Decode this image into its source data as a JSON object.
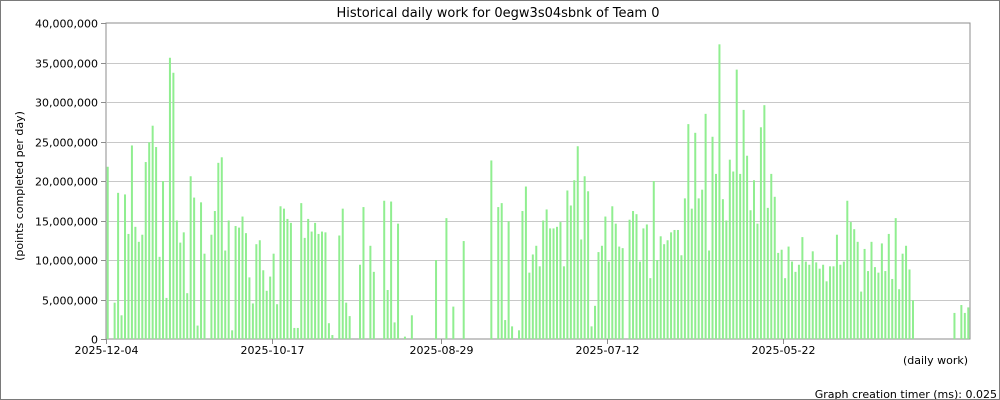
{
  "chart_data": {
    "type": "bar",
    "title": "Historical daily work for 0egw3s04sbnk of Team 0",
    "ylabel": "(points completed per day)",
    "xlabel": "(daily work)",
    "footer": "Graph creation timer (ms): 0.025",
    "ylim": [
      0,
      40000000
    ],
    "yticks": [
      0,
      5000000,
      10000000,
      15000000,
      20000000,
      25000000,
      30000000,
      35000000,
      40000000
    ],
    "ytick_labels": [
      "0",
      "5,000,000",
      "10,000,000",
      "15,000,000",
      "20,000,000",
      "25,000,000",
      "30,000,000",
      "35,000,000",
      "40,000,000"
    ],
    "x_start": "2025-12-04",
    "x_order": "descending",
    "x_labels": [
      {
        "date": "2025-12-04",
        "label": "2025-12-04"
      },
      {
        "date": "2025-10-17",
        "label": "2025-10-17"
      },
      {
        "date": "2025-08-29",
        "label": "2025-08-29"
      },
      {
        "date": "2025-07-12",
        "label": "2025-07-12"
      },
      {
        "date": "2025-05-22",
        "label": "2025-05-22"
      }
    ],
    "grid": true,
    "bar_color": "#90ee90",
    "values": [
      21800000,
      0,
      4600000,
      18500000,
      3000000,
      18300000,
      13300000,
      24500000,
      14200000,
      12300000,
      13200000,
      22400000,
      24900000,
      27000000,
      24300000,
      10400000,
      20000000,
      5200000,
      35600000,
      33700000,
      15000000,
      12200000,
      13500000,
      5800000,
      20600000,
      17900000,
      1700000,
      17300000,
      10800000,
      0,
      13200000,
      16200000,
      22300000,
      23000000,
      11200000,
      15000000,
      1100000,
      14300000,
      14100000,
      15500000,
      13400000,
      7800000,
      4500000,
      12000000,
      12500000,
      8700000,
      6100000,
      7900000,
      10800000,
      4400000,
      16800000,
      16500000,
      15200000,
      14700000,
      1400000,
      1400000,
      17200000,
      12800000,
      15200000,
      13600000,
      14700000,
      13300000,
      13600000,
      13500000,
      2000000,
      500000,
      0,
      13100000,
      16500000,
      4600000,
      2900000,
      0,
      0,
      9400000,
      16700000,
      0,
      11800000,
      8500000,
      0,
      0,
      17500000,
      6200000,
      17400000,
      2100000,
      14600000,
      0,
      300000,
      0,
      3000000,
      0,
      0,
      0,
      0,
      0,
      0,
      10000000,
      0,
      0,
      15300000,
      0,
      4100000,
      0,
      0,
      12400000,
      0,
      0,
      0,
      0,
      0,
      0,
      0,
      22600000,
      0,
      16700000,
      17200000,
      2400000,
      14900000,
      1600000,
      0,
      1100000,
      16200000,
      19300000,
      8400000,
      10700000,
      11800000,
      9200000,
      15000000,
      16400000,
      14000000,
      14000000,
      14200000,
      14800000,
      9200000,
      18800000,
      16900000,
      20100000,
      24400000,
      12600000,
      20600000,
      18700000,
      1600000,
      4200000,
      11000000,
      11800000,
      15500000,
      9800000,
      16800000,
      14600000,
      11700000,
      11500000,
      0,
      15100000,
      16200000,
      15800000,
      9800000,
      14000000,
      14500000,
      7700000,
      20000000,
      10000000,
      13000000,
      12000000,
      12500000,
      13500000,
      13800000,
      13800000,
      10600000,
      17800000,
      27200000,
      16500000,
      26100000,
      17800000,
      18900000,
      28500000,
      11200000,
      25600000,
      20900000,
      37300000,
      17700000,
      15000000,
      22700000,
      21200000,
      34100000,
      20900000,
      29000000,
      23200000,
      16300000,
      20100000,
      14600000,
      26800000,
      29600000,
      16600000,
      20900000,
      18000000,
      10900000,
      11300000,
      7700000,
      11700000,
      9800000,
      8500000,
      9400000,
      12900000,
      9800000,
      9400000,
      11100000,
      9700000,
      8900000,
      9400000,
      7300000,
      9200000,
      9200000,
      13200000,
      9400000,
      9800000,
      17500000,
      14800000,
      13900000,
      12300000,
      6000000,
      11400000,
      8600000,
      12300000,
      9100000,
      8400000,
      12100000,
      8600000,
      13300000,
      7600000,
      15300000,
      6300000,
      10800000,
      11800000,
      8800000,
      4900000,
      0,
      0,
      0,
      0,
      0,
      0,
      0,
      0,
      0,
      0,
      0,
      3300000,
      0,
      4300000,
      3300000,
      4000000
    ]
  }
}
